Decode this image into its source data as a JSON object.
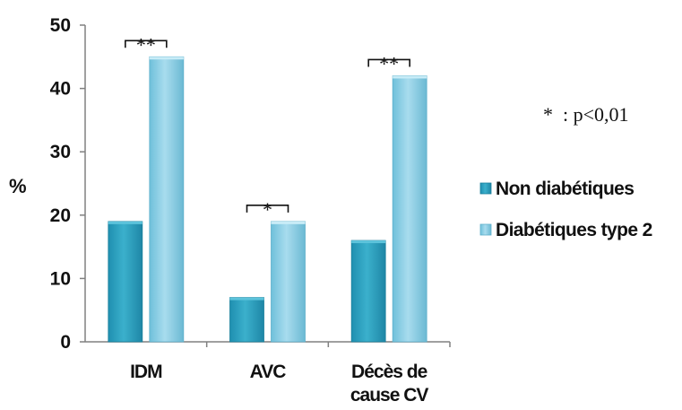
{
  "chart_data": {
    "type": "bar",
    "title": "",
    "xlabel": "",
    "ylabel": "%",
    "ylim": [
      0,
      50
    ],
    "yticks": [
      "0",
      "10",
      "20",
      "30",
      "40",
      "50"
    ],
    "categories": [
      [
        "IDM"
      ],
      [
        "AVC"
      ],
      [
        "Décès de",
        "cause CV"
      ]
    ],
    "series": [
      {
        "name": "Non diabétiques",
        "values": [
          19,
          7,
          16
        ],
        "color": "#2a9fbd"
      },
      {
        "name": "Diabétiques type 2",
        "values": [
          45,
          19,
          42
        ],
        "color": "#8fd0e6"
      }
    ],
    "significance": [
      "**",
      "*",
      "**"
    ],
    "annotation": "*  : p<0,01",
    "grid": false,
    "legend_position": "right"
  }
}
